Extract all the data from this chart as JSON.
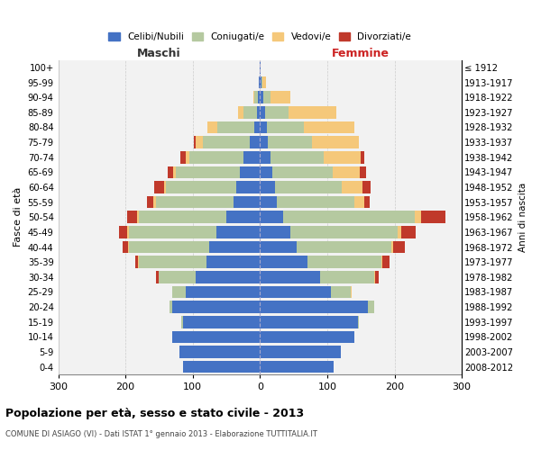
{
  "age_groups": [
    "0-4",
    "5-9",
    "10-14",
    "15-19",
    "20-24",
    "25-29",
    "30-34",
    "35-39",
    "40-44",
    "45-49",
    "50-54",
    "55-59",
    "60-64",
    "65-69",
    "70-74",
    "75-79",
    "80-84",
    "85-89",
    "90-94",
    "95-99",
    "100+"
  ],
  "birth_years": [
    "2008-2012",
    "2003-2007",
    "1998-2002",
    "1993-1997",
    "1988-1992",
    "1983-1987",
    "1978-1982",
    "1973-1977",
    "1968-1972",
    "1963-1967",
    "1958-1962",
    "1953-1957",
    "1948-1952",
    "1943-1947",
    "1938-1942",
    "1933-1937",
    "1928-1932",
    "1923-1927",
    "1918-1922",
    "1913-1917",
    "≤ 1912"
  ],
  "colors": {
    "celibe": "#4472c4",
    "coniugato": "#b5c9a0",
    "vedovo": "#f5c87a",
    "divorziato": "#c0392b"
  },
  "maschi": {
    "celibe": [
      115,
      120,
      130,
      115,
      130,
      110,
      95,
      80,
      75,
      65,
      50,
      40,
      35,
      30,
      25,
      15,
      8,
      5,
      3,
      2,
      1
    ],
    "coniugato": [
      0,
      0,
      0,
      2,
      5,
      20,
      55,
      100,
      120,
      130,
      130,
      115,
      105,
      95,
      80,
      70,
      55,
      20,
      5,
      0,
      0
    ],
    "vedovo": [
      0,
      0,
      0,
      0,
      0,
      1,
      0,
      1,
      1,
      2,
      3,
      3,
      3,
      4,
      5,
      10,
      15,
      8,
      2,
      0,
      0
    ],
    "divorziato": [
      0,
      0,
      0,
      0,
      0,
      0,
      4,
      5,
      8,
      12,
      15,
      10,
      14,
      8,
      8,
      3,
      0,
      0,
      0,
      0,
      0
    ]
  },
  "femmine": {
    "nubile": [
      110,
      120,
      140,
      145,
      160,
      105,
      90,
      70,
      55,
      45,
      35,
      25,
      22,
      18,
      15,
      12,
      10,
      8,
      5,
      2,
      1
    ],
    "coniugata": [
      0,
      0,
      0,
      2,
      10,
      30,
      80,
      110,
      140,
      160,
      195,
      115,
      100,
      90,
      80,
      65,
      55,
      35,
      10,
      2,
      0
    ],
    "vedova": [
      0,
      0,
      0,
      0,
      0,
      1,
      1,
      2,
      3,
      5,
      10,
      15,
      30,
      40,
      55,
      70,
      75,
      70,
      30,
      5,
      0
    ],
    "divorziata": [
      0,
      0,
      0,
      0,
      0,
      0,
      5,
      10,
      18,
      22,
      35,
      8,
      12,
      10,
      5,
      0,
      0,
      0,
      0,
      0,
      0
    ]
  },
  "xlim": 300,
  "title": "Popolazione per età, sesso e stato civile - 2013",
  "subtitle": "COMUNE DI ASIAGO (VI) - Dati ISTAT 1° gennaio 2013 - Elaborazione TUTTITALIA.IT",
  "ylabel": "Fasce di età",
  "ylabel_right": "Anni di nascita",
  "xlabel_left": "Maschi",
  "xlabel_right": "Femmine",
  "bg_color": "#f2f2f2",
  "grid_color": "#cccccc"
}
